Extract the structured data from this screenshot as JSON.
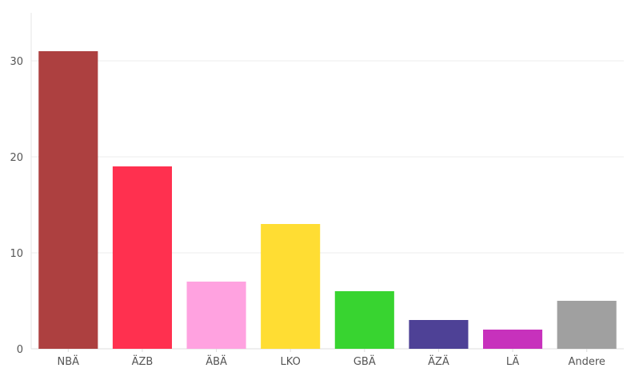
{
  "chart_data": {
    "type": "bar",
    "categories": [
      "NBÄ",
      "ÄZB",
      "ÄBÄ",
      "LKO",
      "GBÄ",
      "ÄZÄ",
      "LÄ",
      "Andere"
    ],
    "values": [
      31,
      19,
      7,
      13,
      6,
      3,
      2,
      5
    ],
    "colors": [
      "#ad4040",
      "#ff304f",
      "#ffa2e0",
      "#ffdd33",
      "#38d430",
      "#4e4196",
      "#c731bc",
      "#a0a0a0"
    ],
    "yticks": [
      0,
      10,
      20,
      30
    ],
    "ylim": [
      0,
      35
    ],
    "grid": true,
    "legend": "none"
  }
}
